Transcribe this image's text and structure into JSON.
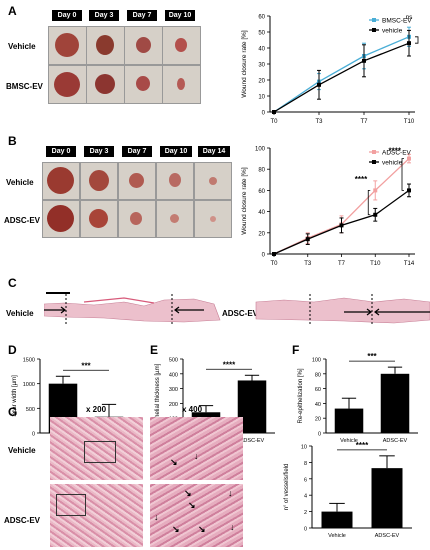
{
  "panel_labels": {
    "a": "A",
    "b": "B",
    "c": "C",
    "d": "D",
    "e": "E",
    "f": "F",
    "g": "G"
  },
  "panelA": {
    "days": [
      "Day 0",
      "Day 3",
      "Day 7",
      "Day 10"
    ],
    "rows": [
      "Vehicle",
      "BMSC-EV"
    ]
  },
  "panelB": {
    "days": [
      "Day 0",
      "Day 3",
      "Day 7",
      "Day 10",
      "Day 14"
    ],
    "rows": [
      "Vehicle",
      "ADSC-EV"
    ]
  },
  "panelC": {
    "left_label": "Vehicle",
    "right_label": "ADSC-EV"
  },
  "panelG": {
    "mags": [
      "x 200",
      "x 400"
    ],
    "rows": [
      "Vehicle",
      "ADSC-EV"
    ]
  },
  "colors": {
    "vehicle": "#000000",
    "bmsc": "#4aaed6",
    "adsc": "#f2a0a0",
    "bar": "#000000",
    "tissue": "#e7a9bb"
  },
  "chart_data": [
    {
      "id": "A-line",
      "type": "line",
      "x": [
        "T0",
        "T3",
        "T7",
        "T10"
      ],
      "ylabel": "Wound closure rate [%]",
      "ylim": [
        0,
        60
      ],
      "yticks": [
        0,
        10,
        20,
        30,
        40,
        50,
        60
      ],
      "series": [
        {
          "name": "BMSC-EV",
          "values": [
            0,
            19,
            35,
            47
          ],
          "err": [
            0,
            5,
            8,
            6
          ],
          "color": "#4aaed6"
        },
        {
          "name": "vehicle",
          "values": [
            0,
            17,
            32,
            43
          ],
          "err": [
            0,
            9,
            10,
            8
          ],
          "color": "#000000"
        }
      ],
      "annotations": [
        "ns"
      ],
      "legend": "top-right"
    },
    {
      "id": "B-line",
      "type": "line",
      "x": [
        "T0",
        "T3",
        "T7",
        "T10",
        "T14"
      ],
      "ylabel": "Wound closure rate [%]",
      "ylim": [
        0,
        100
      ],
      "yticks": [
        0,
        20,
        40,
        60,
        80,
        100
      ],
      "series": [
        {
          "name": "ADSC-EV",
          "values": [
            0,
            15,
            28,
            60,
            90
          ],
          "err": [
            0,
            5,
            8,
            9,
            4
          ],
          "color": "#f2a0a0"
        },
        {
          "name": "vehicle",
          "values": [
            0,
            14,
            27,
            37,
            60
          ],
          "err": [
            0,
            5,
            7,
            6,
            6
          ],
          "color": "#000000"
        }
      ],
      "annotations": [
        "****",
        "****"
      ],
      "legend": "top-right"
    },
    {
      "id": "D-bar",
      "type": "bar",
      "categories": [
        "Vehicle",
        "ADSC-EV"
      ],
      "values": [
        1000,
        330
      ],
      "err": [
        150,
        250
      ],
      "ylabel": "Scar width [µm]",
      "ylim": [
        0,
        1500
      ],
      "yticks": [
        0,
        500,
        1000,
        1500
      ],
      "annotations": [
        "***"
      ]
    },
    {
      "id": "E-bar",
      "type": "bar",
      "categories": [
        "Vehicle",
        "ADSC-EV"
      ],
      "values": [
        140,
        355
      ],
      "err": [
        45,
        35
      ],
      "ylabel": "Epithelial thickness [µm]",
      "ylim": [
        0,
        500
      ],
      "yticks": [
        0,
        100,
        200,
        300,
        400,
        500
      ],
      "annotations": [
        "****"
      ]
    },
    {
      "id": "F-bar",
      "type": "bar",
      "categories": [
        "Vehicle",
        "ADSC-EV"
      ],
      "values": [
        33,
        80
      ],
      "err": [
        14,
        9
      ],
      "ylabel": "Re-epithelization [%]",
      "ylim": [
        0,
        100
      ],
      "yticks": [
        0,
        20,
        40,
        60,
        80,
        100
      ],
      "annotations": [
        "***"
      ]
    },
    {
      "id": "G-bar",
      "type": "bar",
      "categories": [
        "Vehicle",
        "ADSC-EV"
      ],
      "values": [
        2,
        7.3
      ],
      "err": [
        1,
        1.5
      ],
      "ylabel": "n° of vessels/field",
      "ylim": [
        0,
        10
      ],
      "yticks": [
        0,
        2,
        4,
        6,
        8,
        10
      ],
      "annotations": [
        "****"
      ]
    }
  ]
}
